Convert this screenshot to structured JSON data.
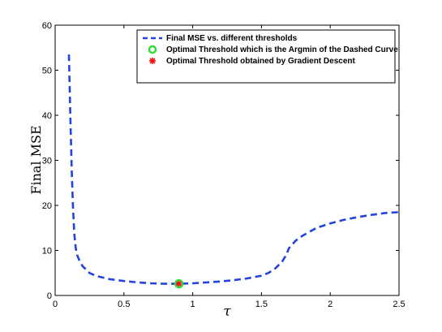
{
  "chart_data": {
    "type": "line",
    "xlabel": "τ",
    "ylabel": "Final MSE",
    "xlim": [
      0,
      2.5
    ],
    "ylim": [
      0,
      60
    ],
    "xticks": [
      0,
      0.5,
      1,
      1.5,
      2,
      2.5
    ],
    "xtick_labels": [
      "0",
      "0.5",
      "1",
      "1.5",
      "2",
      "2.5"
    ],
    "yticks": [
      0,
      10,
      20,
      30,
      40,
      50,
      60
    ],
    "ytick_labels": [
      "0",
      "10",
      "20",
      "30",
      "40",
      "50",
      "60"
    ],
    "grid": false,
    "legend_position": "top-right",
    "series": [
      {
        "name": "Final MSE vs. different thresholds",
        "style": "dashed-line",
        "color": "#2343e0",
        "x": [
          0.1,
          0.11,
          0.12,
          0.13,
          0.14,
          0.15,
          0.16,
          0.18,
          0.2,
          0.25,
          0.3,
          0.4,
          0.5,
          0.6,
          0.7,
          0.8,
          0.9,
          1.0,
          1.1,
          1.2,
          1.3,
          1.4,
          1.5,
          1.55,
          1.6,
          1.65,
          1.68,
          1.7,
          1.75,
          1.8,
          1.9,
          2.0,
          2.1,
          2.2,
          2.3,
          2.4,
          2.5
        ],
        "y": [
          53.5,
          40.0,
          28.0,
          19.5,
          13.5,
          10.5,
          9.0,
          7.5,
          6.5,
          5.0,
          4.3,
          3.6,
          3.2,
          2.9,
          2.7,
          2.6,
          2.6,
          2.7,
          2.9,
          3.1,
          3.4,
          3.8,
          4.4,
          5.0,
          6.0,
          7.5,
          9.0,
          10.5,
          12.2,
          13.3,
          15.0,
          16.0,
          16.8,
          17.4,
          17.9,
          18.3,
          18.5
        ]
      },
      {
        "name": "Optimal Threshold which is the Argmin of the Dashed Curve",
        "style": "ring-marker",
        "color": "#33dd33",
        "x": [
          0.9
        ],
        "y": [
          2.6
        ]
      },
      {
        "name": "Optimal Threshold obtained by Gradient Descent",
        "style": "star-marker",
        "color": "#ee1111",
        "x": [
          0.9
        ],
        "y": [
          2.6
        ]
      }
    ]
  }
}
